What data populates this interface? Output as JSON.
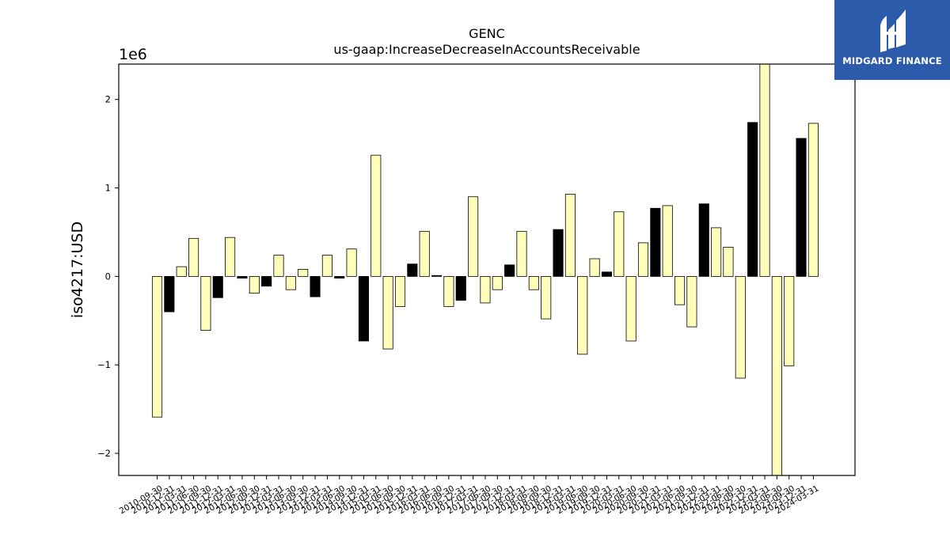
{
  "chart_data": {
    "type": "bar",
    "title": "GENC",
    "subtitle": "us-gaap:IncreaseDecreaseInAccountsReceivable",
    "ylabel": "iso4217:USD",
    "xlabel": "",
    "offset_label": "1e6",
    "scale": 1000000,
    "ylim": [
      -2.25,
      2.4
    ],
    "yticks": [
      -2,
      -1,
      0,
      1,
      2
    ],
    "ytick_labels": [
      "−2",
      "−1",
      "0",
      "1",
      "2"
    ],
    "grid": false,
    "categories": [
      "2010-09-30",
      "2010-12-31",
      "2011-03-31",
      "2011-06-30",
      "2011-09-30",
      "2011-12-31",
      "2012-03-31",
      "2012-06-30",
      "2012-09-30",
      "2012-12-31",
      "2013-03-31",
      "2013-06-30",
      "2013-09-30",
      "2013-12-31",
      "2014-03-31",
      "2014-06-30",
      "2014-09-30",
      "2014-12-31",
      "2015-03-31",
      "2015-06-30",
      "2015-09-30",
      "2015-12-31",
      "2016-03-31",
      "2016-06-30",
      "2016-09-30",
      "2016-12-31",
      "2017-03-31",
      "2017-06-30",
      "2017-09-30",
      "2017-12-31",
      "2018-03-31",
      "2018-06-30",
      "2018-09-30",
      "2018-12-31",
      "2019-03-31",
      "2019-06-30",
      "2019-09-30",
      "2019-12-31",
      "2020-03-31",
      "2020-06-30",
      "2020-09-30",
      "2020-12-31",
      "2021-03-31",
      "2021-06-30",
      "2021-09-30",
      "2021-12-31",
      "2022-03-31",
      "2022-06-30",
      "2022-09-30",
      "2022-12-31",
      "2023-03-31",
      "2023-06-30",
      "2023-09-30",
      "2023-12-31",
      "2024-03-31"
    ],
    "values": [
      -1.59,
      -0.4,
      0.11,
      0.43,
      -0.61,
      -0.24,
      0.44,
      -0.02,
      -0.19,
      -0.11,
      0.24,
      -0.15,
      0.08,
      -0.23,
      0.24,
      -0.02,
      0.31,
      -0.73,
      1.37,
      -0.82,
      -0.34,
      0.14,
      0.51,
      0.01,
      -0.34,
      -0.27,
      0.9,
      -0.3,
      -0.15,
      0.13,
      0.51,
      -0.15,
      -0.48,
      0.53,
      0.93,
      -0.88,
      0.2,
      0.05,
      0.73,
      -0.73,
      0.38,
      0.77,
      0.8,
      -0.32,
      -0.57,
      0.82,
      0.55,
      0.33,
      -1.15,
      1.74,
      2.5,
      -2.3,
      -1.01,
      1.56,
      1.73
    ],
    "bar_colors": [
      "#ffffbb",
      "#000000",
      "#ffffbb",
      "#ffffbb",
      "#ffffbb",
      "#000000",
      "#ffffbb",
      "#000000",
      "#ffffbb",
      "#000000",
      "#ffffbb",
      "#ffffbb",
      "#ffffbb",
      "#000000",
      "#ffffbb",
      "#000000",
      "#ffffbb",
      "#000000",
      "#ffffbb",
      "#ffffbb",
      "#ffffbb",
      "#000000",
      "#ffffbb",
      "#000000",
      "#ffffbb",
      "#000000",
      "#ffffbb",
      "#ffffbb",
      "#ffffbb",
      "#000000",
      "#ffffbb",
      "#ffffbb",
      "#ffffbb",
      "#000000",
      "#ffffbb",
      "#ffffbb",
      "#ffffbb",
      "#000000",
      "#ffffbb",
      "#ffffbb",
      "#ffffbb",
      "#000000",
      "#ffffbb",
      "#ffffbb",
      "#ffffbb",
      "#000000",
      "#ffffbb",
      "#ffffbb",
      "#ffffbb",
      "#000000",
      "#ffffbb",
      "#ffffbb",
      "#ffffbb",
      "#000000",
      "#ffffbb"
    ]
  },
  "logo": {
    "text": "MIDGARD FINANCE",
    "icon": "midgard-logo-icon",
    "background": "#2d5bab"
  }
}
